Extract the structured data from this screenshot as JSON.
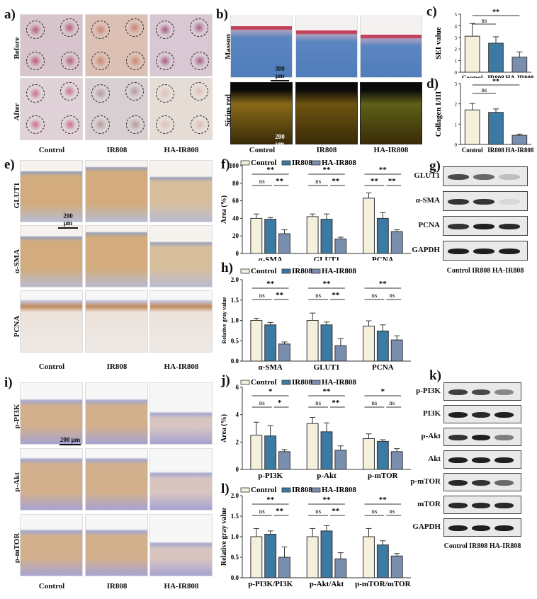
{
  "colors": {
    "control": "#f5f0dc",
    "ir808": "#3c7aa3",
    "ha_ir808": "#7a8fb0",
    "bar_edge": "#333333"
  },
  "groups": [
    "Control",
    "IR808",
    "HA-IR808"
  ],
  "panels": {
    "a": {
      "letter": "a)",
      "rows": [
        "Before",
        "After"
      ],
      "cols": [
        "Control",
        "IR808",
        "HA-IR808"
      ]
    },
    "b": {
      "letter": "b)",
      "rows": [
        "Masson",
        "Sirius red"
      ],
      "cols": [
        "Control",
        "IR808",
        "HA-IR808"
      ],
      "scalebar_masson": "300 μm",
      "scalebar_sirius": "200 μm"
    },
    "c": {
      "letter": "c)"
    },
    "d": {
      "letter": "d)"
    },
    "e": {
      "letter": "e)",
      "rows": [
        "GLUT1",
        "α-SMA",
        "PCNA"
      ],
      "cols": [
        "Control",
        "IR808",
        "HA-IR808"
      ],
      "scalebar": "200 μm"
    },
    "f": {
      "letter": "f)"
    },
    "g": {
      "letter": "g)",
      "rows": [
        "GLUT1",
        "α-SMA",
        "PCNA",
        "GAPDH"
      ],
      "cols": [
        "Control",
        "IR808",
        "HA-IR808"
      ]
    },
    "h": {
      "letter": "h)"
    },
    "i": {
      "letter": "i)",
      "rows": [
        "p-PI3K",
        "p-Akt",
        "p-mTOR"
      ],
      "cols": [
        "Control",
        "IR808",
        "HA-IR808"
      ],
      "scalebar": "200 μm"
    },
    "j": {
      "letter": "j)"
    },
    "k": {
      "letter": "k)",
      "rows": [
        "p-PI3K",
        "PI3K",
        "p-Akt",
        "Akt",
        "p-mTOR",
        "mTOR",
        "GAPDH"
      ],
      "cols": [
        "Control",
        "IR808",
        "HA-IR808"
      ]
    },
    "l": {
      "letter": "l)"
    }
  },
  "legend": {
    "control": "Control",
    "ir808": "IR808",
    "ha_ir808": "HA-IR808"
  },
  "chart_data": [
    {
      "panel": "c",
      "type": "bar",
      "title": "",
      "xlabel": "",
      "ylabel": "SEI value",
      "ylim": [
        0,
        5
      ],
      "yticks": [
        0,
        1,
        2,
        3,
        4,
        5
      ],
      "categories": [
        "Control",
        "IR808",
        "HA-IR808"
      ],
      "values": [
        3.1,
        2.5,
        1.3
      ],
      "errors": [
        1.1,
        0.55,
        0.45
      ],
      "significance": [
        {
          "from": "Control",
          "to": "IR808",
          "label": "ns"
        },
        {
          "from": "Control",
          "to": "HA-IR808",
          "label": "**"
        }
      ]
    },
    {
      "panel": "d",
      "type": "bar",
      "xlabel": "",
      "ylabel": "Collagen I/III",
      "ylim": [
        0,
        3
      ],
      "yticks": [
        0,
        1,
        2,
        3
      ],
      "categories": [
        "Control",
        "IR808",
        "HA-IR808"
      ],
      "values": [
        1.7,
        1.58,
        0.45
      ],
      "errors": [
        0.32,
        0.17,
        0.06
      ],
      "significance": [
        {
          "from": "Control",
          "to": "IR808",
          "label": "ns"
        },
        {
          "from": "Control",
          "to": "HA-IR808",
          "label": "**"
        }
      ]
    },
    {
      "panel": "f",
      "type": "bar",
      "ylabel": "Area (%)",
      "ylim": [
        0,
        100
      ],
      "yticks": [
        0,
        20,
        40,
        60,
        80,
        100
      ],
      "categories": [
        "α-SMA",
        "GLUT1",
        "PCNA"
      ],
      "legend": [
        "Control",
        "IR808",
        "HA-IR808"
      ],
      "legend_position": "top",
      "series": [
        {
          "name": "Control",
          "values": [
            40,
            42,
            63
          ],
          "errors": [
            5,
            3,
            6
          ]
        },
        {
          "name": "IR808",
          "values": [
            39,
            39,
            40
          ],
          "errors": [
            2,
            6,
            6.5
          ]
        },
        {
          "name": "HA-IR808",
          "values": [
            22.5,
            16.5,
            25
          ],
          "errors": [
            4.5,
            2,
            2
          ]
        }
      ],
      "significance": [
        {
          "category": "α-SMA",
          "labels": {
            "control_vs_ha": "**",
            "control_vs_ir808": "ns",
            "ir808_vs_ha": "**"
          }
        },
        {
          "category": "GLUT1",
          "labels": {
            "control_vs_ha": "**",
            "control_vs_ir808": "ns",
            "ir808_vs_ha": "**"
          }
        },
        {
          "category": "PCNA",
          "labels": {
            "control_vs_ha": "**",
            "control_vs_ir808": "**",
            "ir808_vs_ha": "**"
          }
        }
      ]
    },
    {
      "panel": "h",
      "type": "bar",
      "ylabel": "Relative gray value",
      "ylim": [
        0,
        2.0
      ],
      "yticks": [
        0.0,
        0.5,
        1.0,
        1.5,
        2.0
      ],
      "categories": [
        "α-SMA",
        "GLUT1",
        "PCNA"
      ],
      "legend": [
        "Control",
        "IR808",
        "HA-IR808"
      ],
      "legend_position": "top",
      "series": [
        {
          "name": "Control",
          "values": [
            1.0,
            1.0,
            0.86
          ],
          "errors": [
            0.05,
            0.18,
            0.13
          ]
        },
        {
          "name": "IR808",
          "values": [
            0.89,
            0.89,
            0.74
          ],
          "errors": [
            0.06,
            0.07,
            0.15
          ]
        },
        {
          "name": "HA-IR808",
          "values": [
            0.42,
            0.38,
            0.52
          ],
          "errors": [
            0.05,
            0.17,
            0.1
          ]
        }
      ],
      "significance": [
        {
          "category": "α-SMA",
          "labels": {
            "control_vs_ha": "**",
            "control_vs_ir808": "ns",
            "ir808_vs_ha": "**"
          }
        },
        {
          "category": "GLUT1",
          "labels": {
            "control_vs_ha": "**",
            "control_vs_ir808": "ns",
            "ir808_vs_ha": "**"
          }
        },
        {
          "category": "PCNA",
          "labels": {
            "control_vs_ha": "**",
            "control_vs_ir808": "ns",
            "ir808_vs_ha": "ns"
          }
        }
      ]
    },
    {
      "panel": "j",
      "type": "bar",
      "ylabel": "Area (%)",
      "ylim": [
        0,
        6
      ],
      "yticks": [
        0,
        2,
        4,
        6
      ],
      "categories": [
        "p-PI3K",
        "p-Akt",
        "p-mTOR"
      ],
      "legend": [
        "Control",
        "IR808",
        "HA-IR808"
      ],
      "legend_position": "top",
      "series": [
        {
          "name": "Control",
          "values": [
            2.5,
            3.35,
            2.25
          ],
          "errors": [
            0.95,
            0.45,
            0.35
          ]
        },
        {
          "name": "IR808",
          "values": [
            2.45,
            2.75,
            2.05
          ],
          "errors": [
            0.75,
            0.65,
            0.12
          ]
        },
        {
          "name": "HA-IR808",
          "values": [
            1.3,
            1.4,
            1.3
          ],
          "errors": [
            0.15,
            0.32,
            0.22
          ]
        }
      ],
      "significance": [
        {
          "category": "p-PI3K",
          "labels": {
            "control_vs_ha": "*",
            "control_vs_ir808": "ns",
            "ir808_vs_ha": "*"
          }
        },
        {
          "category": "p-Akt",
          "labels": {
            "control_vs_ha": "**",
            "control_vs_ir808": "ns",
            "ir808_vs_ha": "**"
          }
        },
        {
          "category": "p-mTOR",
          "labels": {
            "control_vs_ha": "*",
            "control_vs_ir808": "ns",
            "ir808_vs_ha": "ns"
          }
        }
      ]
    },
    {
      "panel": "l",
      "type": "bar",
      "ylabel": "Relative gray value",
      "ylim": [
        0,
        2.0
      ],
      "yticks": [
        0.0,
        0.5,
        1.0,
        1.5,
        2.0
      ],
      "categories": [
        "p-PI3K/PI3K",
        "p-Akt/Akt",
        "p-mTOR/mTOR"
      ],
      "legend": [
        "Control",
        "IR808",
        "HA-IR808"
      ],
      "legend_position": "top",
      "series": [
        {
          "name": "Control",
          "values": [
            1.0,
            1.0,
            1.0
          ],
          "errors": [
            0.2,
            0.2,
            0.2
          ]
        },
        {
          "name": "IR808",
          "values": [
            1.06,
            1.14,
            0.8
          ],
          "errors": [
            0.08,
            0.13,
            0.1
          ]
        },
        {
          "name": "HA-IR808",
          "values": [
            0.5,
            0.46,
            0.53
          ],
          "errors": [
            0.25,
            0.15,
            0.06
          ]
        }
      ],
      "significance": [
        {
          "category": "p-PI3K/PI3K",
          "labels": {
            "control_vs_ha": "**",
            "control_vs_ir808": "ns",
            "ir808_vs_ha": "**"
          }
        },
        {
          "category": "p-Akt/Akt",
          "labels": {
            "control_vs_ha": "**",
            "control_vs_ir808": "ns",
            "ir808_vs_ha": "**"
          }
        },
        {
          "category": "p-mTOR/mTOR",
          "labels": {
            "control_vs_ha": "**",
            "control_vs_ir808": "ns",
            "ir808_vs_ha": "ns"
          }
        }
      ]
    }
  ]
}
